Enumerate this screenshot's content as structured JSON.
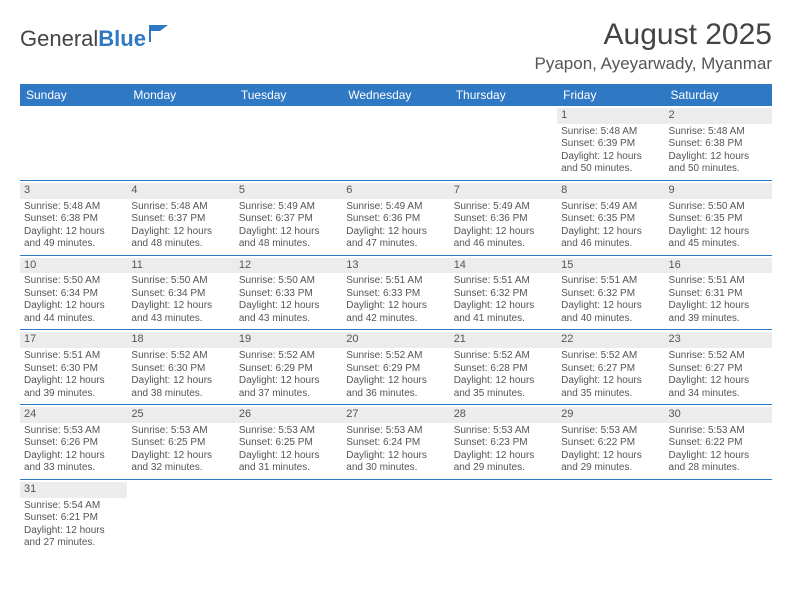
{
  "logo": {
    "text1": "General",
    "text2": "Blue"
  },
  "title": "August 2025",
  "location": "Pyapon, Ayeyarwady, Myanmar",
  "colors": {
    "brand": "#2f78c4",
    "header_bg": "#2f78c4",
    "header_fg": "#ffffff",
    "daynum_bg": "#ececec",
    "text": "#555555",
    "divider": "#2f78c4"
  },
  "dow": [
    "Sunday",
    "Monday",
    "Tuesday",
    "Wednesday",
    "Thursday",
    "Friday",
    "Saturday"
  ],
  "weeks": [
    [
      null,
      null,
      null,
      null,
      null,
      {
        "n": "1",
        "sr": "5:48 AM",
        "ss": "6:39 PM",
        "dl": "12 hours and 50 minutes."
      },
      {
        "n": "2",
        "sr": "5:48 AM",
        "ss": "6:38 PM",
        "dl": "12 hours and 50 minutes."
      }
    ],
    [
      {
        "n": "3",
        "sr": "5:48 AM",
        "ss": "6:38 PM",
        "dl": "12 hours and 49 minutes."
      },
      {
        "n": "4",
        "sr": "5:48 AM",
        "ss": "6:37 PM",
        "dl": "12 hours and 48 minutes."
      },
      {
        "n": "5",
        "sr": "5:49 AM",
        "ss": "6:37 PM",
        "dl": "12 hours and 48 minutes."
      },
      {
        "n": "6",
        "sr": "5:49 AM",
        "ss": "6:36 PM",
        "dl": "12 hours and 47 minutes."
      },
      {
        "n": "7",
        "sr": "5:49 AM",
        "ss": "6:36 PM",
        "dl": "12 hours and 46 minutes."
      },
      {
        "n": "8",
        "sr": "5:49 AM",
        "ss": "6:35 PM",
        "dl": "12 hours and 46 minutes."
      },
      {
        "n": "9",
        "sr": "5:50 AM",
        "ss": "6:35 PM",
        "dl": "12 hours and 45 minutes."
      }
    ],
    [
      {
        "n": "10",
        "sr": "5:50 AM",
        "ss": "6:34 PM",
        "dl": "12 hours and 44 minutes."
      },
      {
        "n": "11",
        "sr": "5:50 AM",
        "ss": "6:34 PM",
        "dl": "12 hours and 43 minutes."
      },
      {
        "n": "12",
        "sr": "5:50 AM",
        "ss": "6:33 PM",
        "dl": "12 hours and 43 minutes."
      },
      {
        "n": "13",
        "sr": "5:51 AM",
        "ss": "6:33 PM",
        "dl": "12 hours and 42 minutes."
      },
      {
        "n": "14",
        "sr": "5:51 AM",
        "ss": "6:32 PM",
        "dl": "12 hours and 41 minutes."
      },
      {
        "n": "15",
        "sr": "5:51 AM",
        "ss": "6:32 PM",
        "dl": "12 hours and 40 minutes."
      },
      {
        "n": "16",
        "sr": "5:51 AM",
        "ss": "6:31 PM",
        "dl": "12 hours and 39 minutes."
      }
    ],
    [
      {
        "n": "17",
        "sr": "5:51 AM",
        "ss": "6:30 PM",
        "dl": "12 hours and 39 minutes."
      },
      {
        "n": "18",
        "sr": "5:52 AM",
        "ss": "6:30 PM",
        "dl": "12 hours and 38 minutes."
      },
      {
        "n": "19",
        "sr": "5:52 AM",
        "ss": "6:29 PM",
        "dl": "12 hours and 37 minutes."
      },
      {
        "n": "20",
        "sr": "5:52 AM",
        "ss": "6:29 PM",
        "dl": "12 hours and 36 minutes."
      },
      {
        "n": "21",
        "sr": "5:52 AM",
        "ss": "6:28 PM",
        "dl": "12 hours and 35 minutes."
      },
      {
        "n": "22",
        "sr": "5:52 AM",
        "ss": "6:27 PM",
        "dl": "12 hours and 35 minutes."
      },
      {
        "n": "23",
        "sr": "5:52 AM",
        "ss": "6:27 PM",
        "dl": "12 hours and 34 minutes."
      }
    ],
    [
      {
        "n": "24",
        "sr": "5:53 AM",
        "ss": "6:26 PM",
        "dl": "12 hours and 33 minutes."
      },
      {
        "n": "25",
        "sr": "5:53 AM",
        "ss": "6:25 PM",
        "dl": "12 hours and 32 minutes."
      },
      {
        "n": "26",
        "sr": "5:53 AM",
        "ss": "6:25 PM",
        "dl": "12 hours and 31 minutes."
      },
      {
        "n": "27",
        "sr": "5:53 AM",
        "ss": "6:24 PM",
        "dl": "12 hours and 30 minutes."
      },
      {
        "n": "28",
        "sr": "5:53 AM",
        "ss": "6:23 PM",
        "dl": "12 hours and 29 minutes."
      },
      {
        "n": "29",
        "sr": "5:53 AM",
        "ss": "6:22 PM",
        "dl": "12 hours and 29 minutes."
      },
      {
        "n": "30",
        "sr": "5:53 AM",
        "ss": "6:22 PM",
        "dl": "12 hours and 28 minutes."
      }
    ],
    [
      {
        "n": "31",
        "sr": "5:54 AM",
        "ss": "6:21 PM",
        "dl": "12 hours and 27 minutes."
      },
      null,
      null,
      null,
      null,
      null,
      null
    ]
  ],
  "labels": {
    "sunrise": "Sunrise: ",
    "sunset": "Sunset: ",
    "daylight": "Daylight: "
  }
}
